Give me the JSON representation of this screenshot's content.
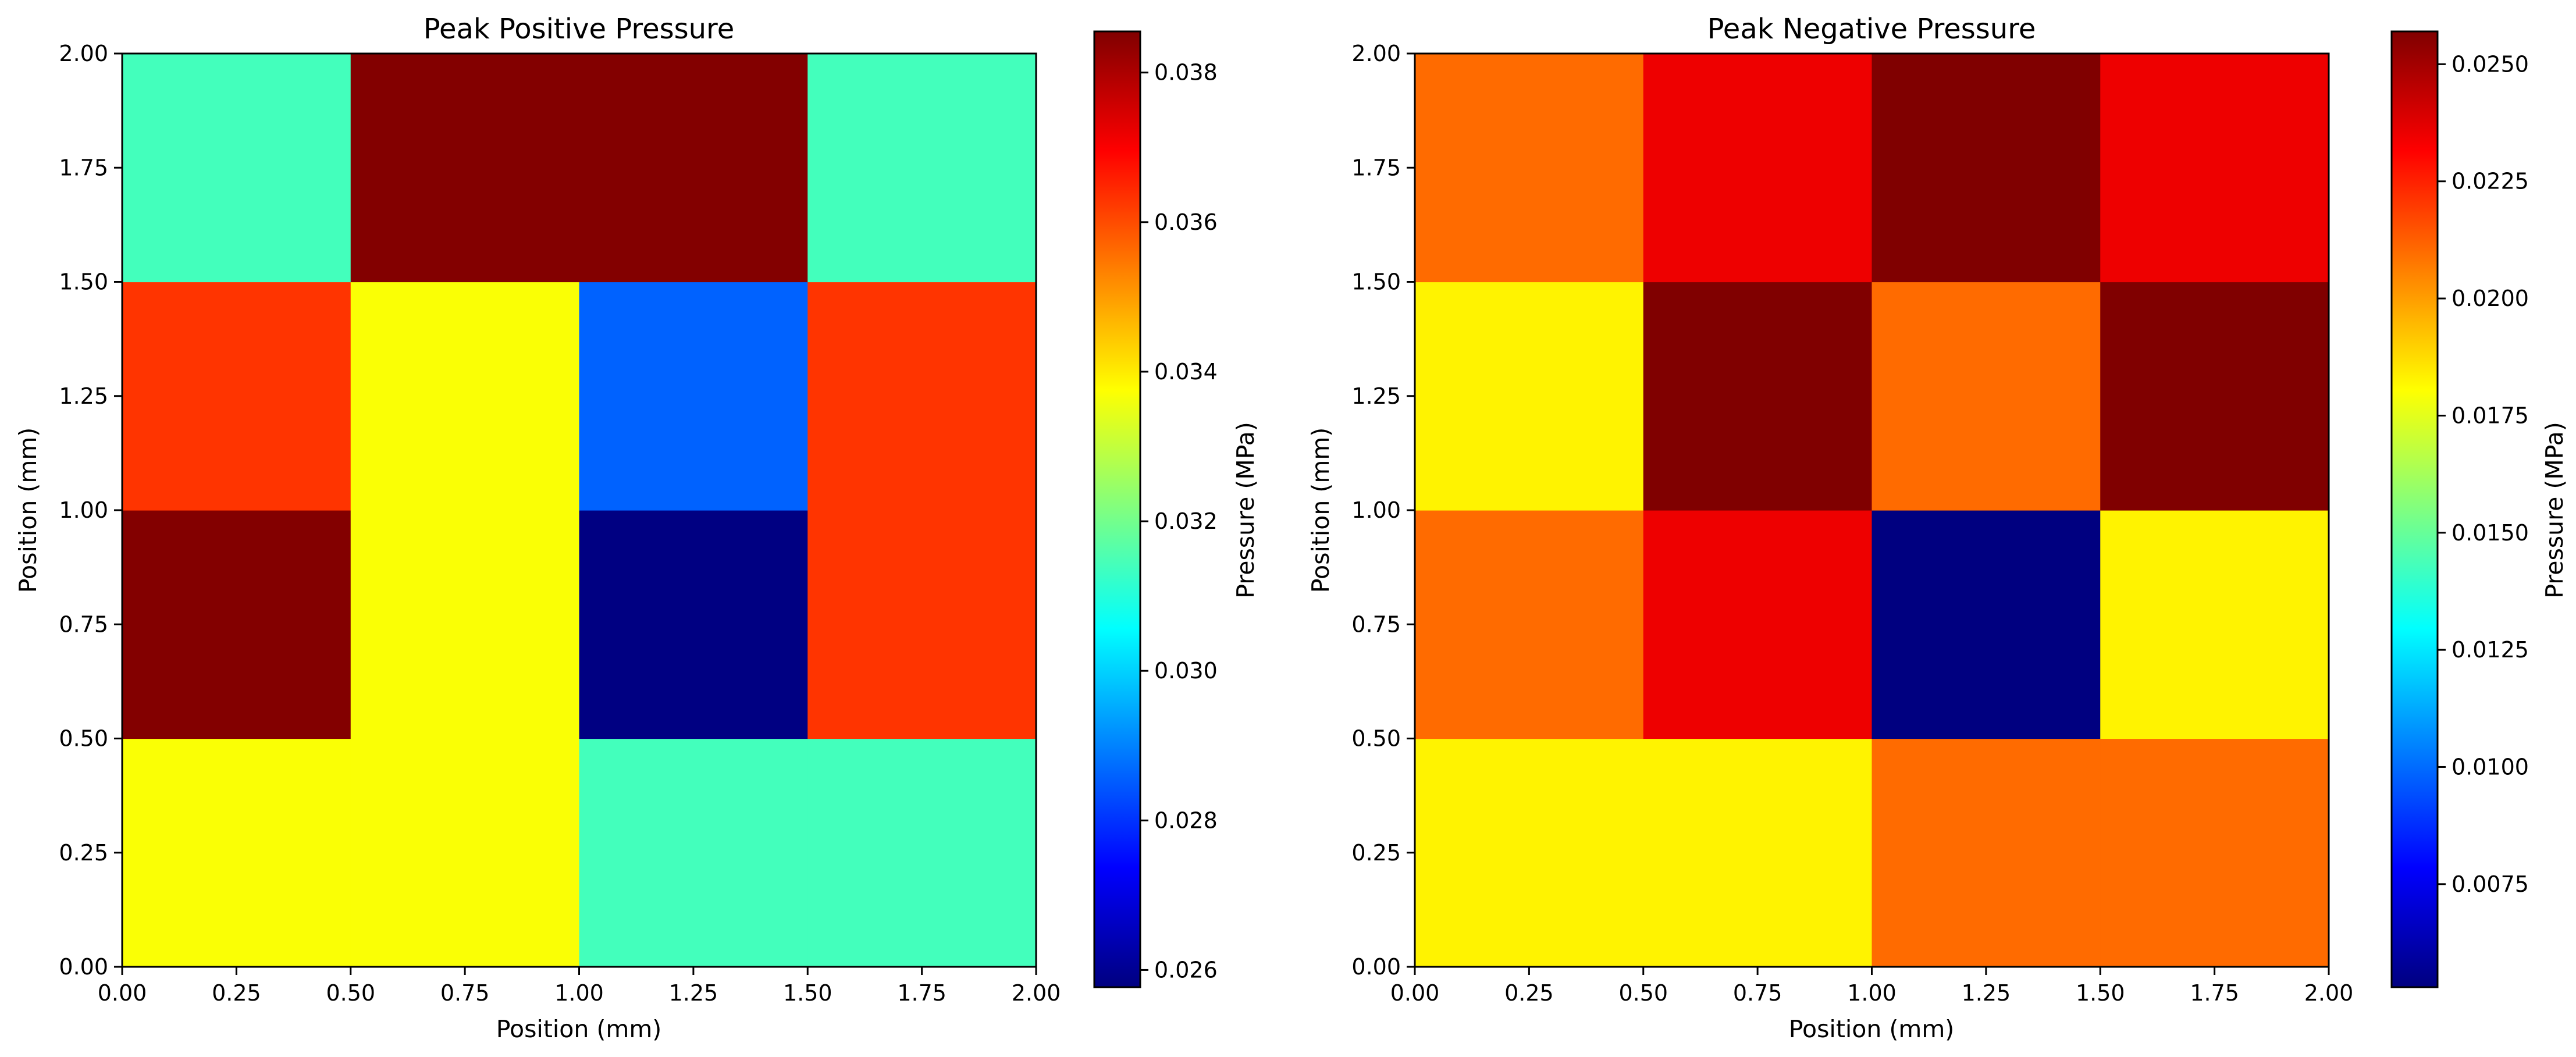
{
  "chart_data": [
    {
      "type": "heatmap",
      "title": "Peak Positive Pressure",
      "xlabel": "Position (mm)",
      "ylabel": "Position (mm)",
      "xlim": [
        0,
        2
      ],
      "ylim": [
        0,
        2
      ],
      "x_edges": [
        0,
        0.5,
        1.0,
        1.5,
        2.0
      ],
      "y_edges": [
        0,
        0.5,
        1.0,
        1.5,
        2.0
      ],
      "x_ticks": [
        0,
        0.25,
        0.5,
        0.75,
        1.0,
        1.25,
        1.5,
        1.75,
        2.0
      ],
      "x_tick_labels": [
        "0.00",
        "0.25",
        "0.50",
        "0.75",
        "1.00",
        "1.25",
        "1.50",
        "1.75",
        "2.00"
      ],
      "y_ticks": [
        0,
        0.25,
        0.5,
        0.75,
        1.0,
        1.25,
        1.5,
        1.75,
        2.0
      ],
      "y_tick_labels": [
        "0.00",
        "0.25",
        "0.50",
        "0.75",
        "1.00",
        "1.25",
        "1.50",
        "1.75",
        "2.00"
      ],
      "values_rows_bottom_to_top": [
        [
          0.0337,
          0.0337,
          0.0314,
          0.0314
        ],
        [
          0.0385,
          0.0337,
          0.0258,
          0.0363
        ],
        [
          0.0363,
          0.0337,
          0.0286,
          0.0363
        ],
        [
          0.0314,
          0.0385,
          0.0385,
          0.0314
        ]
      ],
      "colormap": "jet",
      "colorbar": {
        "label": "Pressure (MPa)",
        "vmin": 0.02577,
        "vmax": 0.03855,
        "ticks": [
          0.026,
          0.028,
          0.03,
          0.032,
          0.034,
          0.036,
          0.038
        ],
        "tick_labels": [
          "0.026",
          "0.028",
          "0.030",
          "0.032",
          "0.034",
          "0.036",
          "0.038"
        ]
      }
    },
    {
      "type": "heatmap",
      "title": "Peak Negative Pressure",
      "xlabel": "Position (mm)",
      "ylabel": "Position (mm)",
      "xlim": [
        0,
        2
      ],
      "ylim": [
        0,
        2
      ],
      "x_edges": [
        0,
        0.5,
        1.0,
        1.5,
        2.0
      ],
      "y_edges": [
        0,
        0.5,
        1.0,
        1.5,
        2.0
      ],
      "x_ticks": [
        0,
        0.25,
        0.5,
        0.75,
        1.0,
        1.25,
        1.5,
        1.75,
        2.0
      ],
      "x_tick_labels": [
        "0.00",
        "0.25",
        "0.50",
        "0.75",
        "1.00",
        "1.25",
        "1.50",
        "1.75",
        "2.00"
      ],
      "y_ticks": [
        0,
        0.25,
        0.5,
        0.75,
        1.0,
        1.25,
        1.5,
        1.75,
        2.0
      ],
      "y_tick_labels": [
        "0.00",
        "0.25",
        "0.50",
        "0.75",
        "1.00",
        "1.25",
        "1.50",
        "1.75",
        "2.00"
      ],
      "values_rows_bottom_to_top": [
        [
          0.0183,
          0.0183,
          0.021,
          0.021
        ],
        [
          0.021,
          0.0235,
          0.0053,
          0.0183
        ],
        [
          0.0183,
          0.0257,
          0.021,
          0.0257
        ],
        [
          0.021,
          0.0235,
          0.0257,
          0.0235
        ]
      ],
      "colormap": "jet",
      "colorbar": {
        "label": "Pressure (MPa)",
        "vmin": 0.0053,
        "vmax": 0.0257,
        "ticks": [
          0.0075,
          0.01,
          0.0125,
          0.015,
          0.0175,
          0.02,
          0.0225,
          0.025
        ],
        "tick_labels": [
          "0.0075",
          "0.0100",
          "0.0125",
          "0.0150",
          "0.0175",
          "0.0200",
          "0.0225",
          "0.0250"
        ]
      }
    }
  ]
}
